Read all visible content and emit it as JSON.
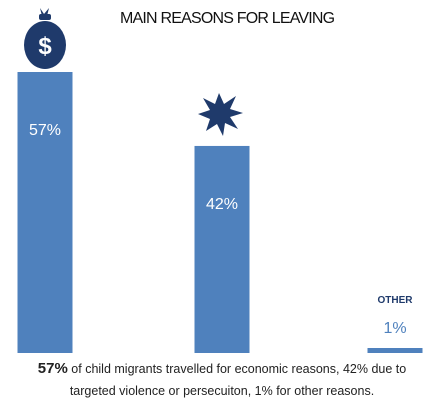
{
  "chart_data": {
    "type": "bar",
    "title": "MAIN REASONS FOR LEAVING",
    "categories": [
      "",
      "",
      "OTHER"
    ],
    "values": [
      57,
      42,
      1
    ],
    "value_labels": [
      "57%",
      "42%",
      "1%"
    ],
    "ylim": [
      0,
      57
    ],
    "grid": false,
    "legend": "none",
    "icons": [
      "money-bag-icon",
      "explosion-icon",
      ""
    ],
    "colors": {
      "bar": "#4f81bd",
      "icon": "#1f3a6b",
      "bag_text": "#ffffff"
    }
  },
  "caption": {
    "highlight": "57%",
    "line1": " of child migrants travelled for economic reasons, 42% due to",
    "line2": "targeted violence or persecuiton, 1%  for other reasons."
  },
  "icons": {
    "money_bag_symbol": "$"
  }
}
